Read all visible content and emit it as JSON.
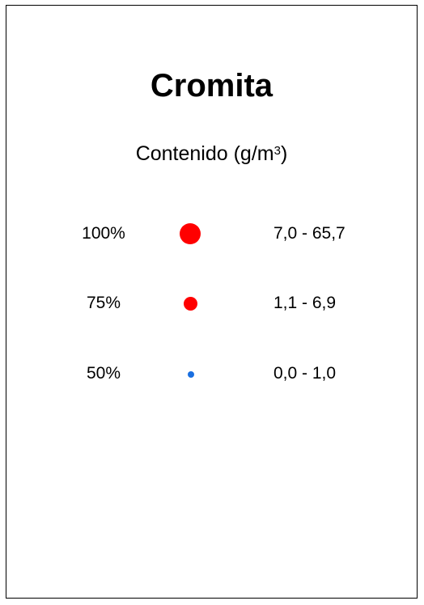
{
  "legend": {
    "title": "Cromita",
    "subtitle_main": "Contenido (g/m",
    "subtitle_sup": "3",
    "subtitle_end": ")",
    "classes": [
      {
        "percent": "100%",
        "range": "7,0 - 65,7",
        "color": "#ff0000",
        "symbol": "large-circle"
      },
      {
        "percent": "75%",
        "range": "1,1 - 6,9",
        "color": "#ff0000",
        "symbol": "medium-circle"
      },
      {
        "percent": "50%",
        "range": "0,0 - 1,0",
        "color": "#1a6fe0",
        "symbol": "small-circle"
      }
    ]
  }
}
